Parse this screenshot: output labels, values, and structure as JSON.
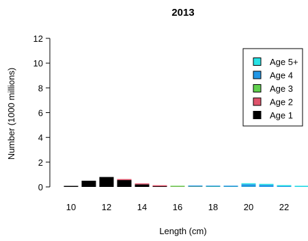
{
  "chart_data": {
    "type": "bar",
    "title": "2013",
    "xlabel": "Length (cm)",
    "ylabel": "Number (1000 millions)",
    "ylim": [
      0,
      12
    ],
    "xlim": [
      9.5,
      23.5
    ],
    "yticks": [
      0,
      2,
      4,
      6,
      8,
      10,
      12
    ],
    "xticks": [
      10,
      12,
      14,
      16,
      18,
      20,
      22
    ],
    "stacked": true,
    "legend_position": "top-right",
    "categories": [
      10,
      11,
      12,
      13,
      14,
      15,
      16,
      17,
      18,
      19,
      20,
      21,
      22,
      23
    ],
    "series": [
      {
        "name": "Age 1",
        "color": "#000000",
        "values": [
          0.08,
          0.5,
          0.8,
          0.55,
          0.2,
          0.05,
          0.0,
          0.0,
          0.0,
          0.0,
          0.0,
          0.0,
          0.0,
          0.0
        ]
      },
      {
        "name": "Age 2",
        "color": "#DF536B",
        "values": [
          0.0,
          0.0,
          0.0,
          0.05,
          0.07,
          0.03,
          0.01,
          0.01,
          0.0,
          0.0,
          0.0,
          0.0,
          0.0,
          0.0
        ]
      },
      {
        "name": "Age 3",
        "color": "#61D04F",
        "values": [
          0.0,
          0.0,
          0.0,
          0.0,
          0.0,
          0.0,
          0.01,
          0.02,
          0.02,
          0.01,
          0.01,
          0.0,
          0.0,
          0.0
        ]
      },
      {
        "name": "Age 4",
        "color": "#2297E6",
        "values": [
          0.0,
          0.0,
          0.0,
          0.0,
          0.0,
          0.0,
          0.0,
          0.01,
          0.04,
          0.09,
          0.2,
          0.16,
          0.06,
          0.01
        ]
      },
      {
        "name": "Age 5+",
        "color": "#28E2E5",
        "values": [
          0.0,
          0.0,
          0.0,
          0.0,
          0.0,
          0.0,
          0.0,
          0.0,
          0.0,
          0.0,
          0.01,
          0.01,
          0.01,
          0.01
        ]
      }
    ],
    "legend_order": [
      "Age 5+",
      "Age 4",
      "Age 3",
      "Age 2",
      "Age 1"
    ]
  }
}
